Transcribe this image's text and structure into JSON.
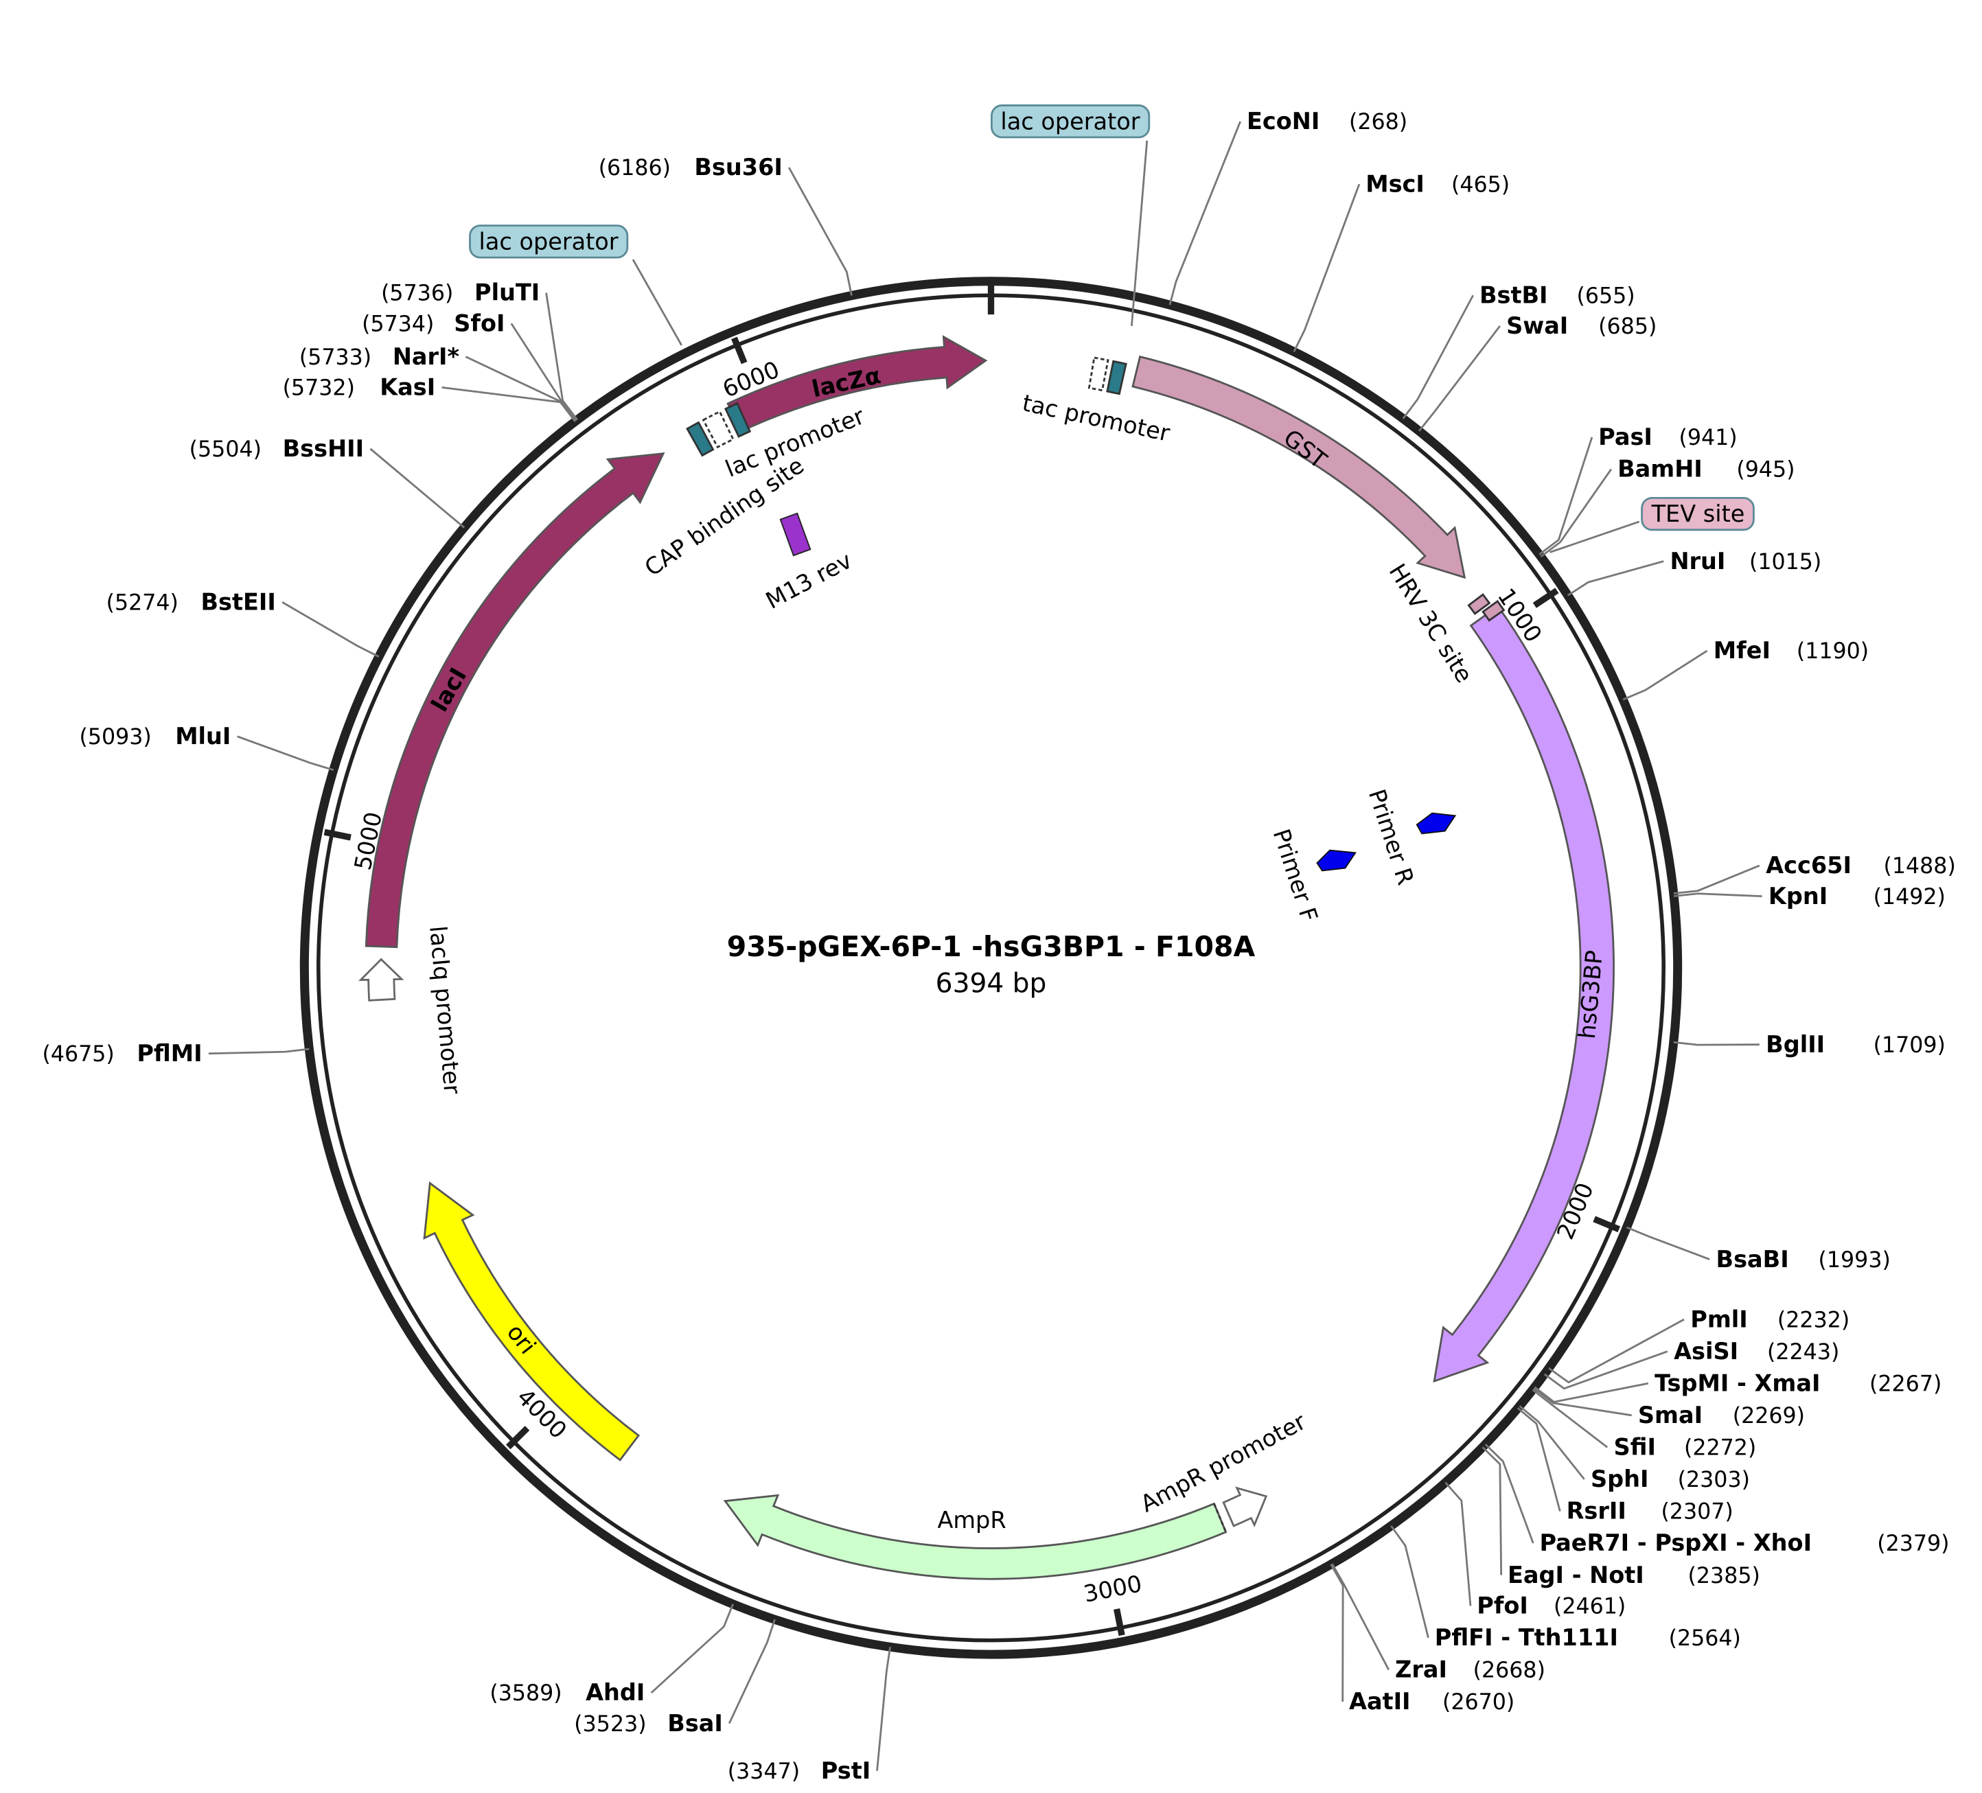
{
  "title": "935-pGEX-6P-1 -hsG3BP1 - F108A",
  "length": {
    "value": 6394,
    "label": "6394 bp"
  },
  "ticks": [
    1000,
    2000,
    3000,
    4000,
    5000,
    6000
  ],
  "enzymes": [
    {
      "name": "EcoNI",
      "position": {
        "value": 268,
        "label": "(268)"
      }
    },
    {
      "name": "MscI",
      "position": {
        "value": 465,
        "label": "(465)"
      }
    },
    {
      "name": "BstBI",
      "position": {
        "value": 655,
        "label": "(655)"
      }
    },
    {
      "name": "SwaI",
      "position": {
        "value": 685,
        "label": "(685)"
      }
    },
    {
      "name": "PasI",
      "position": {
        "value": 941,
        "label": "(941)"
      }
    },
    {
      "name": "BamHI",
      "position": {
        "value": 945,
        "label": "(945)"
      }
    },
    {
      "name": "NruI",
      "position": {
        "value": 1015,
        "label": "(1015)"
      }
    },
    {
      "name": "MfeI",
      "position": {
        "value": 1190,
        "label": "(1190)"
      }
    },
    {
      "name": "Acc65I",
      "position": {
        "value": 1488,
        "label": "(1488)"
      }
    },
    {
      "name": "KpnI",
      "position": {
        "value": 1492,
        "label": "(1492)"
      }
    },
    {
      "name": "BglII",
      "position": {
        "value": 1709,
        "label": "(1709)"
      }
    },
    {
      "name": "BsaBI",
      "position": {
        "value": 1993,
        "label": "(1993)"
      }
    },
    {
      "name": "PmlI",
      "position": {
        "value": 2232,
        "label": "(2232)"
      }
    },
    {
      "name": "AsiSI",
      "position": {
        "value": 2243,
        "label": "(2243)"
      }
    },
    {
      "name": "TspMI - XmaI",
      "position": {
        "value": 2267,
        "label": "(2267)"
      }
    },
    {
      "name": "SmaI",
      "position": {
        "value": 2269,
        "label": "(2269)"
      }
    },
    {
      "name": "SfiI",
      "position": {
        "value": 2272,
        "label": "(2272)"
      }
    },
    {
      "name": "SphI",
      "position": {
        "value": 2303,
        "label": "(2303)"
      }
    },
    {
      "name": "RsrII",
      "position": {
        "value": 2307,
        "label": "(2307)"
      }
    },
    {
      "name": "PaeR7I - PspXI - XhoI",
      "position": {
        "value": 2379,
        "label": "(2379)"
      }
    },
    {
      "name": "EagI - NotI",
      "position": {
        "value": 2385,
        "label": "(2385)"
      }
    },
    {
      "name": "PfoI",
      "position": {
        "value": 2461,
        "label": "(2461)"
      }
    },
    {
      "name": "PflFI - Tth111I",
      "position": {
        "value": 2564,
        "label": "(2564)"
      }
    },
    {
      "name": "ZraI",
      "position": {
        "value": 2668,
        "label": "(2668)"
      }
    },
    {
      "name": "AatII",
      "position": {
        "value": 2670,
        "label": "(2670)"
      }
    },
    {
      "name": "PstI",
      "position": {
        "value": 3347,
        "label": "(3347)"
      }
    },
    {
      "name": "BsaI",
      "position": {
        "value": 3523,
        "label": "(3523)"
      }
    },
    {
      "name": "AhdI",
      "position": {
        "value": 3589,
        "label": "(3589)"
      }
    },
    {
      "name": "PflMI",
      "position": {
        "value": 4675,
        "label": "(4675)"
      }
    },
    {
      "name": "MluI",
      "position": {
        "value": 5093,
        "label": "(5093)"
      }
    },
    {
      "name": "BstEII",
      "position": {
        "value": 5274,
        "label": "(5274)"
      }
    },
    {
      "name": "BssHII",
      "position": {
        "value": 5504,
        "label": "(5504)"
      }
    },
    {
      "name": "KasI",
      "position": {
        "value": 5732,
        "label": "(5732)"
      }
    },
    {
      "name": "NarI*",
      "position": {
        "value": 5733,
        "label": "(5733)"
      },
      "color": "#888888"
    },
    {
      "name": "SfoI",
      "position": {
        "value": 5734,
        "label": "(5734)"
      }
    },
    {
      "name": "PluTI",
      "position": {
        "value": 5736,
        "label": "(5736)"
      }
    },
    {
      "name": "Bsu36I",
      "position": {
        "value": 6186,
        "label": "(6186)"
      }
    }
  ],
  "features": [
    "lacZα",
    "GST",
    "hsG3BP",
    "AmpR",
    "ori",
    "lacI",
    "tac promoter",
    "lac promoter",
    "CAP binding site",
    "M13 rev",
    "HRV 3C site",
    "Primer R",
    "Primer F",
    "lacIq promoter",
    "AmpR promoter"
  ],
  "boxed_labels": [
    "lac operator",
    "lac operator",
    "TEV site"
  ]
}
